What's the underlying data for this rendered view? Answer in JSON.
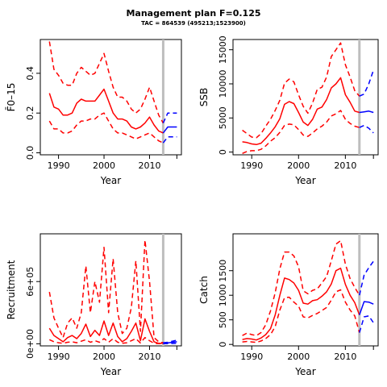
{
  "figure": {
    "title": "Management plan F=0.125",
    "subtitle": "TAC = 864539 (495213;1523900)",
    "colors": {
      "historic": "#ff0000",
      "forecast": "#0000ff",
      "vline": "#bebebe"
    }
  },
  "chart_data": [
    {
      "type": "line",
      "panel": "fbar",
      "xlabel": "Year",
      "ylabel": "F̄0–15",
      "xlim": [
        1986,
        2017
      ],
      "ylim": [
        -0.01,
        0.57
      ],
      "xticks": [
        1990,
        2000,
        2010
      ],
      "yticks": [
        0,
        0.2,
        0.4
      ],
      "ytick_labels": [
        "0.0",
        "0.2",
        "0.4"
      ],
      "vline_x": 2013,
      "grid": false,
      "series": [
        {
          "role": "historic-median",
          "x": [
            1988,
            1989,
            1990,
            1991,
            1992,
            1993,
            1994,
            1995,
            1996,
            1997,
            1998,
            1999,
            2000,
            2001,
            2002,
            2003,
            2004,
            2005,
            2006,
            2007,
            2008,
            2009,
            2010,
            2011,
            2012,
            2013
          ],
          "y": [
            0.3,
            0.23,
            0.22,
            0.19,
            0.19,
            0.2,
            0.25,
            0.27,
            0.26,
            0.26,
            0.26,
            0.29,
            0.32,
            0.26,
            0.2,
            0.17,
            0.17,
            0.16,
            0.13,
            0.12,
            0.13,
            0.15,
            0.18,
            0.14,
            0.11,
            0.1
          ]
        },
        {
          "role": "historic-upper",
          "x": [
            1988,
            1989,
            1990,
            1991,
            1992,
            1993,
            1994,
            1995,
            1996,
            1997,
            1998,
            1999,
            2000,
            2001,
            2002,
            2003,
            2004,
            2005,
            2006,
            2007,
            2008,
            2009,
            2010,
            2011,
            2012,
            2013
          ],
          "y": [
            0.56,
            0.42,
            0.39,
            0.35,
            0.34,
            0.34,
            0.4,
            0.43,
            0.41,
            0.39,
            0.4,
            0.45,
            0.5,
            0.41,
            0.33,
            0.28,
            0.28,
            0.26,
            0.22,
            0.2,
            0.22,
            0.27,
            0.33,
            0.26,
            0.19,
            0.15
          ]
        },
        {
          "role": "historic-lower",
          "x": [
            1988,
            1989,
            1990,
            1991,
            1992,
            1993,
            1994,
            1995,
            1996,
            1997,
            1998,
            1999,
            2000,
            2001,
            2002,
            2003,
            2004,
            2005,
            2006,
            2007,
            2008,
            2009,
            2010,
            2011,
            2012,
            2013
          ],
          "y": [
            0.16,
            0.12,
            0.12,
            0.1,
            0.1,
            0.11,
            0.14,
            0.16,
            0.16,
            0.17,
            0.17,
            0.19,
            0.2,
            0.16,
            0.12,
            0.1,
            0.1,
            0.09,
            0.08,
            0.07,
            0.08,
            0.09,
            0.1,
            0.08,
            0.06,
            0.05
          ]
        },
        {
          "role": "forecast-median",
          "x": [
            2013,
            2014,
            2015,
            2016
          ],
          "y": [
            0.1,
            0.13,
            0.13,
            0.13
          ]
        },
        {
          "role": "forecast-upper",
          "x": [
            2013,
            2014,
            2015,
            2016
          ],
          "y": [
            0.15,
            0.2,
            0.2,
            0.2
          ]
        },
        {
          "role": "forecast-lower",
          "x": [
            2013,
            2014,
            2015,
            2016
          ],
          "y": [
            0.05,
            0.08,
            0.08,
            0.08
          ]
        }
      ]
    },
    {
      "type": "line",
      "panel": "ssb",
      "xlabel": "Year",
      "ylabel": "SSB",
      "xlim": [
        1986,
        2017
      ],
      "ylim": [
        -400,
        16500
      ],
      "xticks": [
        1990,
        2000,
        2010
      ],
      "yticks": [
        0,
        5000,
        10000,
        15000
      ],
      "ytick_labels": [
        "0",
        "5000",
        "10000",
        "15000"
      ],
      "vline_x": 2013,
      "grid": false,
      "series": [
        {
          "role": "historic-median",
          "x": [
            1988,
            1989,
            1990,
            1991,
            1992,
            1993,
            1994,
            1995,
            1996,
            1997,
            1998,
            1999,
            2000,
            2001,
            2002,
            2003,
            2004,
            2005,
            2006,
            2007,
            2008,
            2009,
            2010,
            2011,
            2012,
            2013
          ],
          "y": [
            1500,
            1400,
            1200,
            1100,
            1300,
            2000,
            2800,
            3700,
            4900,
            7000,
            7400,
            7100,
            5800,
            4400,
            3900,
            4800,
            6300,
            6600,
            7700,
            9400,
            10000,
            10900,
            8400,
            7300,
            6000,
            5800
          ]
        },
        {
          "role": "historic-upper",
          "x": [
            1988,
            1989,
            1990,
            1991,
            1992,
            1993,
            1994,
            1995,
            1996,
            1997,
            1998,
            1999,
            2000,
            2001,
            2002,
            2003,
            2004,
            2005,
            2006,
            2007,
            2008,
            2009,
            2010,
            2011,
            2012,
            2013
          ],
          "y": [
            3200,
            2700,
            2200,
            2100,
            2700,
            3800,
            4800,
            6100,
            7600,
            10100,
            10700,
            10300,
            8400,
            6700,
            5700,
            7200,
            9200,
            9500,
            11000,
            14000,
            15000,
            16000,
            12800,
            11000,
            9000,
            8200
          ]
        },
        {
          "role": "historic-lower",
          "x": [
            1988,
            1989,
            1990,
            1991,
            1992,
            1993,
            1994,
            1995,
            1996,
            1997,
            1998,
            1999,
            2000,
            2001,
            2002,
            2003,
            2004,
            2005,
            2006,
            2007,
            2008,
            2009,
            2010,
            2011,
            2012,
            2013
          ],
          "y": [
            -200,
            100,
            200,
            200,
            400,
            900,
            1600,
            2100,
            2900,
            3900,
            4100,
            4000,
            3300,
            2500,
            2300,
            2800,
            3400,
            3800,
            4400,
            5300,
            5600,
            6100,
            4800,
            4200,
            3800,
            3600
          ]
        },
        {
          "role": "forecast-median",
          "x": [
            2013,
            2014,
            2015,
            2016
          ],
          "y": [
            5800,
            5900,
            6000,
            5800
          ]
        },
        {
          "role": "forecast-upper",
          "x": [
            2013,
            2014,
            2015,
            2016
          ],
          "y": [
            8200,
            8500,
            10000,
            12000
          ]
        },
        {
          "role": "forecast-lower",
          "x": [
            2013,
            2014,
            2015,
            2016
          ],
          "y": [
            3600,
            3900,
            3500,
            2800
          ]
        }
      ]
    },
    {
      "type": "line",
      "panel": "recruitment",
      "xlabel": "Year",
      "ylabel": "Recruitment",
      "xlim": [
        1986,
        2017
      ],
      "ylim": [
        -20000,
        1060000
      ],
      "xticks": [
        1990,
        2000,
        2010
      ],
      "yticks": [
        0,
        600000
      ],
      "ytick_labels": [
        "0e+00",
        "6e+05"
      ],
      "vline_x": 2013,
      "grid": false,
      "series": [
        {
          "role": "historic-median",
          "x": [
            1988,
            1989,
            1990,
            1991,
            1992,
            1993,
            1994,
            1995,
            1996,
            1997,
            1998,
            1999,
            2000,
            2001,
            2002,
            2003,
            2004,
            2005,
            2006,
            2007,
            2008,
            2009,
            2010,
            2011,
            2012,
            2013
          ],
          "y": [
            150000,
            80000,
            50000,
            20000,
            60000,
            80000,
            50000,
            100000,
            190000,
            70000,
            130000,
            80000,
            220000,
            80000,
            200000,
            70000,
            20000,
            50000,
            120000,
            200000,
            30000,
            240000,
            120000,
            20000,
            5000,
            5000
          ]
        },
        {
          "role": "historic-upper",
          "x": [
            1988,
            1989,
            1990,
            1991,
            1992,
            1993,
            1994,
            1995,
            1996,
            1997,
            1998,
            1999,
            2000,
            2001,
            2002,
            2003,
            2004,
            2005,
            2006,
            2007,
            2008,
            2009,
            2010,
            2011,
            2012,
            2013
          ],
          "y": [
            500000,
            250000,
            150000,
            60000,
            200000,
            250000,
            150000,
            300000,
            750000,
            300000,
            600000,
            400000,
            930000,
            300000,
            820000,
            300000,
            100000,
            150000,
            350000,
            800000,
            120000,
            1000000,
            600000,
            60000,
            20000,
            10000
          ]
        },
        {
          "role": "historic-lower",
          "x": [
            1988,
            1989,
            1990,
            1991,
            1992,
            1993,
            1994,
            1995,
            1996,
            1997,
            1998,
            1999,
            2000,
            2001,
            2002,
            2003,
            2004,
            2005,
            2006,
            2007,
            2008,
            2009,
            2010,
            2011,
            2012,
            2013
          ],
          "y": [
            40000,
            20000,
            10000,
            5000,
            15000,
            20000,
            10000,
            25000,
            40000,
            15000,
            30000,
            15000,
            50000,
            15000,
            50000,
            15000,
            5000,
            10000,
            30000,
            50000,
            8000,
            60000,
            30000,
            5000,
            1000,
            1000
          ]
        },
        {
          "role": "forecast-median",
          "x": [
            2013,
            2014,
            2015,
            2016
          ],
          "y": [
            5000,
            8000,
            15000,
            20000
          ]
        },
        {
          "role": "forecast-upper",
          "x": [
            2013,
            2014,
            2015,
            2016
          ],
          "y": [
            10000,
            15000,
            25000,
            35000
          ]
        },
        {
          "role": "forecast-lower",
          "x": [
            2013,
            2014,
            2015,
            2016
          ],
          "y": [
            1000,
            2000,
            3000,
            5000
          ]
        }
      ]
    },
    {
      "type": "line",
      "panel": "catch",
      "xlabel": "Year",
      "ylabel": "Catch",
      "xlim": [
        1986,
        2017
      ],
      "ylim": [
        -30,
        2250
      ],
      "xticks": [
        1990,
        2000,
        2010
      ],
      "yticks": [
        0,
        500,
        1000,
        1500
      ],
      "ytick_labels": [
        "0",
        "500",
        "1000",
        "1500"
      ],
      "vline_x": 2013,
      "grid": false,
      "series": [
        {
          "role": "historic-median",
          "x": [
            1988,
            1989,
            1990,
            1991,
            1992,
            1993,
            1994,
            1995,
            1996,
            1997,
            1998,
            1999,
            2000,
            2001,
            2002,
            2003,
            2004,
            2005,
            2006,
            2007,
            2008,
            2009,
            2010,
            2011,
            2012,
            2013
          ],
          "y": [
            100,
            120,
            110,
            90,
            130,
            200,
            320,
            600,
            1000,
            1350,
            1320,
            1250,
            1100,
            840,
            820,
            890,
            910,
            980,
            1070,
            1230,
            1500,
            1550,
            1220,
            1000,
            850,
            600
          ]
        },
        {
          "role": "historic-upper",
          "x": [
            1988,
            1989,
            1990,
            1991,
            1992,
            1993,
            1994,
            1995,
            1996,
            1997,
            1998,
            1999,
            2000,
            2001,
            2002,
            2003,
            2004,
            2005,
            2006,
            2007,
            2008,
            2009,
            2010,
            2011,
            2012,
            2013
          ],
          "y": [
            180,
            230,
            200,
            180,
            240,
            400,
            680,
            1050,
            1540,
            1880,
            1880,
            1800,
            1580,
            1090,
            1030,
            1100,
            1130,
            1250,
            1380,
            1700,
            2040,
            2110,
            1630,
            1340,
            1160,
            1000
          ]
        },
        {
          "role": "historic-lower",
          "x": [
            1988,
            1989,
            1990,
            1991,
            1992,
            1993,
            1994,
            1995,
            1996,
            1997,
            1998,
            1999,
            2000,
            2001,
            2002,
            2003,
            2004,
            2005,
            2006,
            2007,
            2008,
            2009,
            2010,
            2011,
            2012,
            2013
          ],
          "y": [
            50,
            60,
            50,
            40,
            70,
            120,
            200,
            360,
            700,
            950,
            960,
            860,
            780,
            560,
            540,
            590,
            630,
            690,
            750,
            900,
            1070,
            1110,
            860,
            700,
            580,
            240
          ]
        },
        {
          "role": "forecast-median",
          "x": [
            2013,
            2014,
            2015,
            2016
          ],
          "y": [
            600,
            870,
            860,
            820
          ]
        },
        {
          "role": "forecast-upper",
          "x": [
            2013,
            2014,
            2015,
            2016
          ],
          "y": [
            1000,
            1410,
            1560,
            1690
          ]
        },
        {
          "role": "forecast-lower",
          "x": [
            2013,
            2014,
            2015,
            2016
          ],
          "y": [
            240,
            560,
            580,
            440
          ]
        }
      ]
    }
  ]
}
